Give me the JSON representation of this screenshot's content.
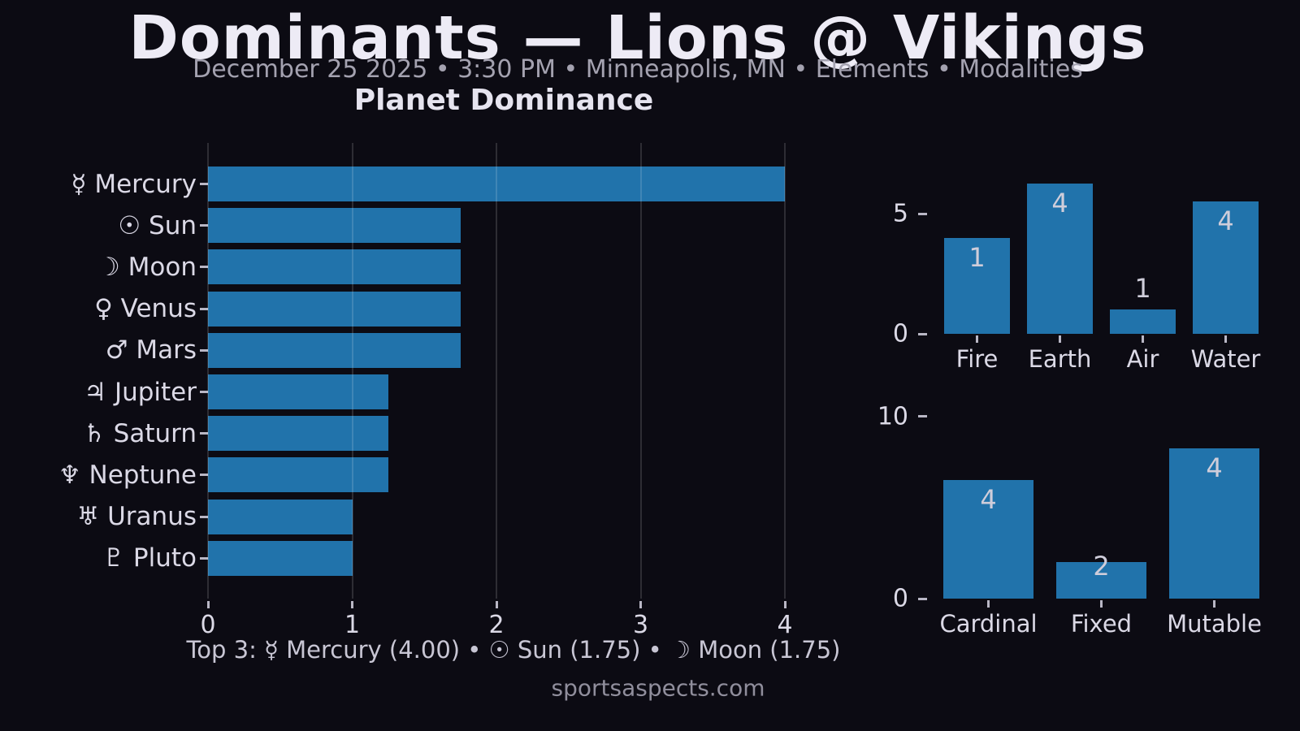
{
  "header": {
    "title": "Dominants — Lions @ Vikings",
    "subtitle": "December 25 2025 • 3:30 PM • Minneapolis, MN • Elements • Modalities",
    "chart_title": "Planet Dominance"
  },
  "footer": {
    "top3": "Top 3: ☿ Mercury (4.00) • ☉ Sun (1.75) •  ☽ Moon (1.75)",
    "watermark": "sportsaspects.com"
  },
  "colors": {
    "background": "#0c0b13",
    "bar": "#2173ab",
    "title_text": "#edebf5",
    "subtitle_text": "#a4a2b0",
    "axis_text": "#dbd9e6",
    "gridline": "rgba(255,255,255,0.14)"
  },
  "chart_data": [
    {
      "type": "bar",
      "orientation": "horizontal",
      "title": "Planet Dominance",
      "categories": [
        "☿ Mercury",
        "☉ Sun",
        "☽ Moon",
        "♀ Venus",
        "♂ Mars",
        "♃ Jupiter",
        "♄ Saturn",
        "♆ Neptune",
        "♅ Uranus",
        "♇ Pluto"
      ],
      "values": [
        4.0,
        1.75,
        1.75,
        1.75,
        1.75,
        1.25,
        1.25,
        1.25,
        1.0,
        1.0
      ],
      "xlabel": "",
      "ylabel": "",
      "xticks": [
        0,
        1,
        2,
        3,
        4
      ],
      "xlim": [
        0,
        4.15
      ],
      "grid": true,
      "legend": false
    },
    {
      "type": "bar",
      "orientation": "vertical",
      "title": "Elements",
      "categories": [
        "Fire",
        "Earth",
        "Air",
        "Water"
      ],
      "values": [
        4.0,
        6.25,
        1.0,
        5.5
      ],
      "bar_labels": [
        "1",
        "4",
        "1",
        "4"
      ],
      "yticks": [
        0,
        5
      ],
      "ylim": [
        0,
        7.9
      ],
      "grid": false,
      "legend": false
    },
    {
      "type": "bar",
      "orientation": "vertical",
      "title": "Modalities",
      "categories": [
        "Cardinal",
        "Fixed",
        "Mutable"
      ],
      "values": [
        6.5,
        2.0,
        8.25
      ],
      "bar_labels": [
        "4",
        "2",
        "4"
      ],
      "yticks": [
        0,
        10
      ],
      "ylim": [
        0,
        10.0
      ],
      "grid": false,
      "legend": false
    }
  ]
}
